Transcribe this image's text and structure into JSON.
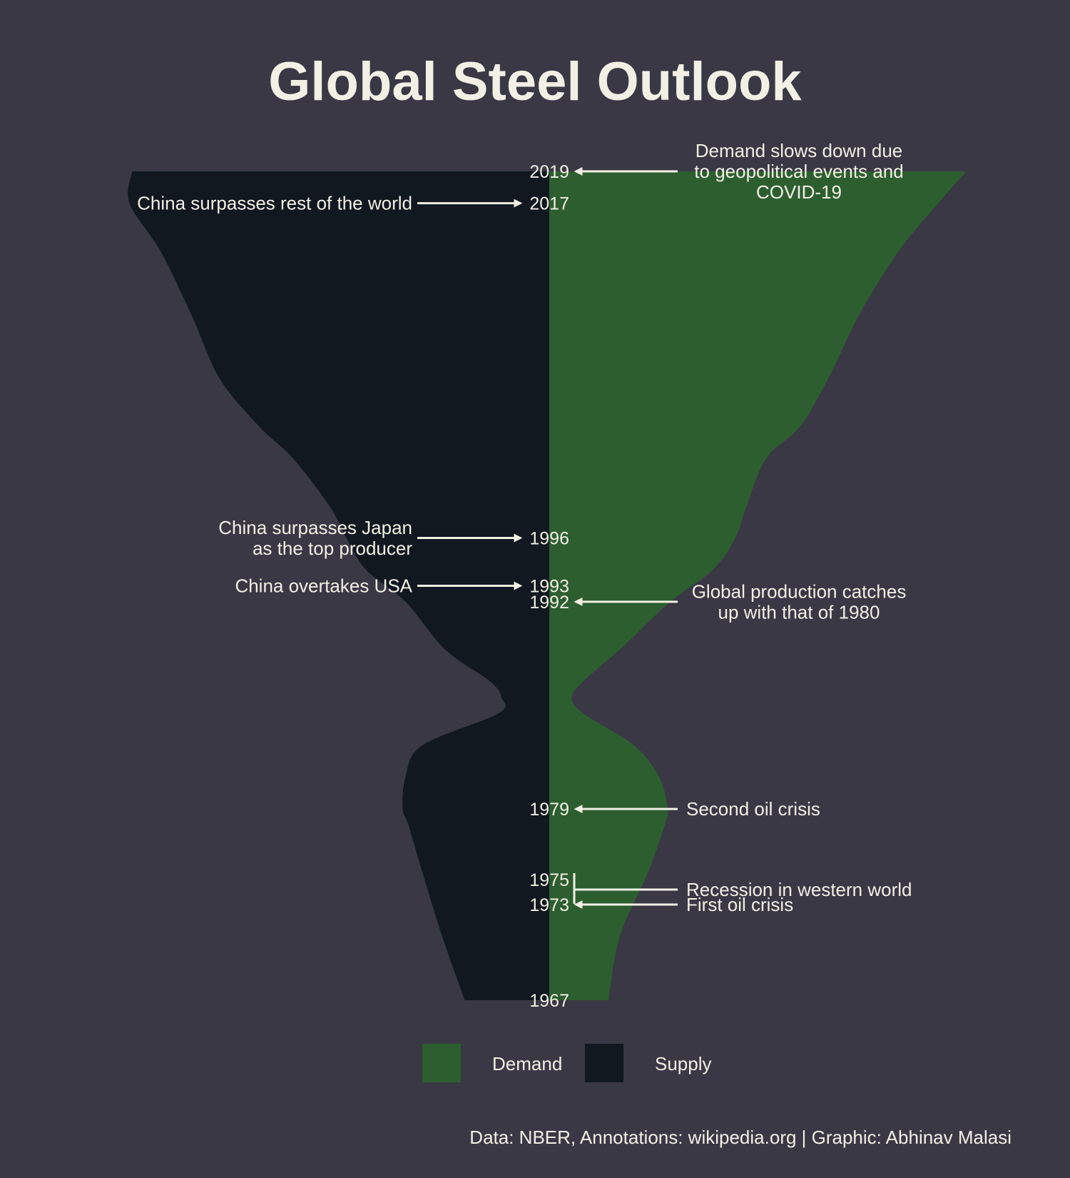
{
  "title": "Global Steel Outlook",
  "caption": "Data: NBER, Annotations: wikipedia.org | Graphic: Abhinav Malasi",
  "colors": {
    "background": "#3a3845",
    "demand": "#2d5e2f",
    "supply": "#111820",
    "text": "#f2f0e4"
  },
  "legend": {
    "items": [
      {
        "label": "Demand",
        "color": "#2d5e2f"
      },
      {
        "label": "Supply",
        "color": "#111820"
      }
    ]
  },
  "chart_data": {
    "type": "area",
    "orientation": "vertical-mirrored",
    "year_range": [
      1967,
      2019
    ],
    "series": [
      {
        "name": "Demand",
        "color": "#2d5e2f",
        "relative_width": [
          [
            1967,
            0.21
          ],
          [
            1971,
            0.25
          ],
          [
            1975,
            0.35
          ],
          [
            1978,
            0.41
          ],
          [
            1979,
            0.42
          ],
          [
            1981,
            0.39
          ],
          [
            1983,
            0.3
          ],
          [
            1985,
            0.12
          ],
          [
            1986,
            0.08
          ],
          [
            1987,
            0.12
          ],
          [
            1989,
            0.25
          ],
          [
            1992,
            0.43
          ],
          [
            1994,
            0.58
          ],
          [
            1996,
            0.66
          ],
          [
            1998,
            0.7
          ],
          [
            2001,
            0.77
          ],
          [
            2003,
            0.89
          ],
          [
            2006,
            0.99
          ],
          [
            2010,
            1.1
          ],
          [
            2014,
            1.24
          ],
          [
            2017,
            1.38
          ],
          [
            2019,
            1.48
          ]
        ]
      },
      {
        "name": "Supply",
        "color": "#111820",
        "relative_width": [
          [
            1967,
            0.3
          ],
          [
            1971,
            0.38
          ],
          [
            1975,
            0.45
          ],
          [
            1978,
            0.5
          ],
          [
            1979,
            0.52
          ],
          [
            1981,
            0.51
          ],
          [
            1983,
            0.45
          ],
          [
            1985,
            0.18
          ],
          [
            1986,
            0.17
          ],
          [
            1987,
            0.21
          ],
          [
            1989,
            0.37
          ],
          [
            1992,
            0.51
          ],
          [
            1994,
            0.65
          ],
          [
            1996,
            0.72
          ],
          [
            1998,
            0.78
          ],
          [
            2001,
            0.91
          ],
          [
            2003,
            1.03
          ],
          [
            2006,
            1.17
          ],
          [
            2010,
            1.27
          ],
          [
            2014,
            1.38
          ],
          [
            2017,
            1.49
          ],
          [
            2019,
            1.48
          ]
        ]
      }
    ],
    "year_labels": [
      "2019",
      "2017",
      "1996",
      "1993",
      "1992",
      "1979",
      "1975",
      "1973",
      "1967"
    ],
    "annotations": [
      {
        "year": 2019,
        "side": "right",
        "lines": [
          "Demand slows down due",
          "to geopolitical events and",
          "COVID-19"
        ]
      },
      {
        "year": 2017,
        "side": "left",
        "lines": [
          "China surpasses rest of the world"
        ]
      },
      {
        "year": 1996,
        "side": "left",
        "lines": [
          "China surpasses Japan",
          "as the top producer"
        ]
      },
      {
        "year": 1993,
        "side": "left",
        "lines": [
          "China overtakes USA"
        ]
      },
      {
        "year": 1992,
        "side": "right",
        "lines": [
          "Global production catches",
          "up with that of 1980"
        ]
      },
      {
        "year": 1979,
        "side": "right",
        "lines": [
          "Second oil crisis"
        ]
      },
      {
        "year": 1975,
        "side": "right",
        "lines": [
          "Recession in western world"
        ]
      },
      {
        "year": 1973,
        "side": "right",
        "lines": [
          "First oil crisis"
        ]
      }
    ]
  }
}
